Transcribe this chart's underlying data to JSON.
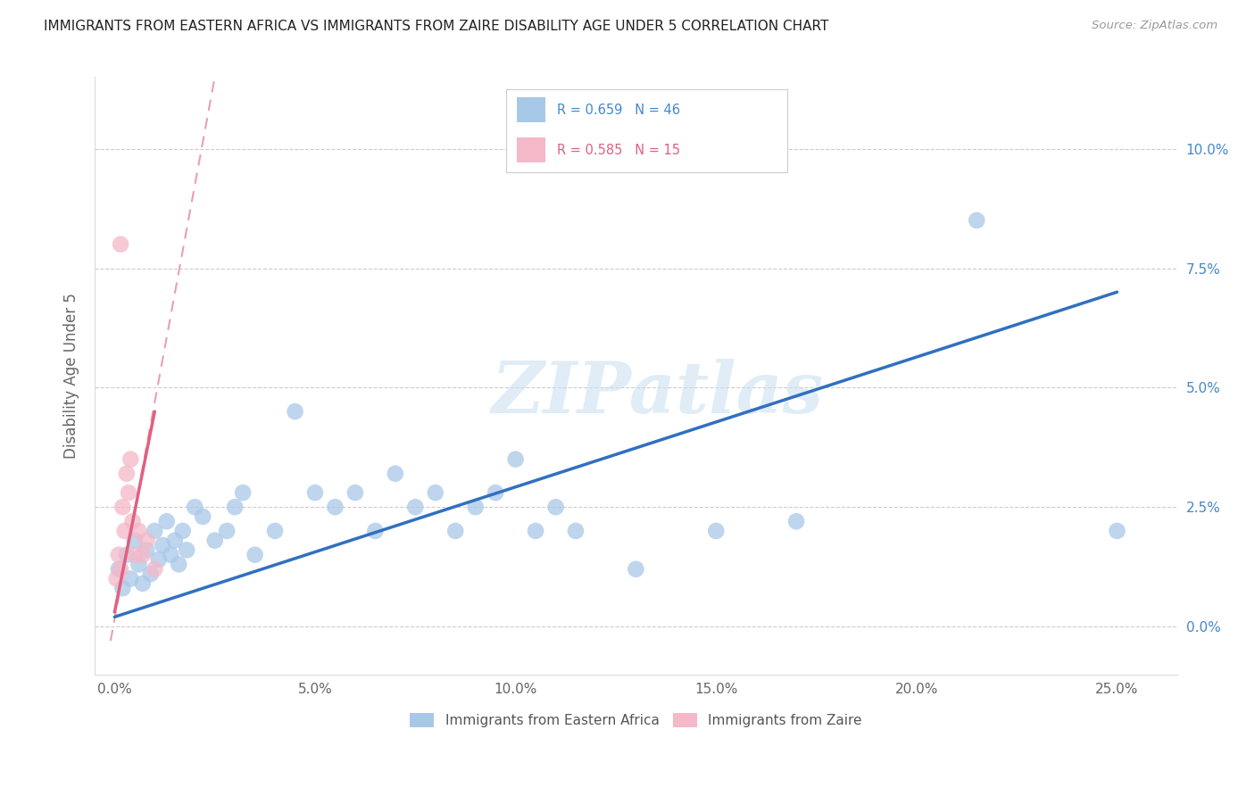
{
  "title": "IMMIGRANTS FROM EASTERN AFRICA VS IMMIGRANTS FROM ZAIRE DISABILITY AGE UNDER 5 CORRELATION CHART",
  "source": "Source: ZipAtlas.com",
  "xlabel_values": [
    0.0,
    5.0,
    10.0,
    15.0,
    20.0,
    25.0
  ],
  "ylabel_values": [
    0.0,
    2.5,
    5.0,
    7.5,
    10.0
  ],
  "ylabel_label": "Disability Age Under 5",
  "legend_label1": "Immigrants from Eastern Africa",
  "legend_label2": "Immigrants from Zaire",
  "R1": 0.659,
  "N1": 46,
  "R2": 0.585,
  "N2": 15,
  "blue_color": "#a8c8e8",
  "pink_color": "#f4b8c8",
  "blue_line_color": "#3070c0",
  "pink_line_color": "#e06080",
  "pink_dash_color": "#e8a0b0",
  "blue_scatter": [
    [
      0.1,
      1.2
    ],
    [
      0.2,
      0.8
    ],
    [
      0.3,
      1.5
    ],
    [
      0.4,
      1.0
    ],
    [
      0.5,
      1.8
    ],
    [
      0.6,
      1.3
    ],
    [
      0.7,
      0.9
    ],
    [
      0.8,
      1.6
    ],
    [
      0.9,
      1.1
    ],
    [
      1.0,
      2.0
    ],
    [
      1.1,
      1.4
    ],
    [
      1.2,
      1.7
    ],
    [
      1.3,
      2.2
    ],
    [
      1.4,
      1.5
    ],
    [
      1.5,
      1.8
    ],
    [
      1.6,
      1.3
    ],
    [
      1.7,
      2.0
    ],
    [
      1.8,
      1.6
    ],
    [
      2.0,
      2.5
    ],
    [
      2.2,
      2.3
    ],
    [
      2.5,
      1.8
    ],
    [
      2.8,
      2.0
    ],
    [
      3.0,
      2.5
    ],
    [
      3.2,
      2.8
    ],
    [
      3.5,
      1.5
    ],
    [
      4.0,
      2.0
    ],
    [
      4.5,
      4.5
    ],
    [
      5.0,
      2.8
    ],
    [
      5.5,
      2.5
    ],
    [
      6.0,
      2.8
    ],
    [
      6.5,
      2.0
    ],
    [
      7.0,
      3.2
    ],
    [
      7.5,
      2.5
    ],
    [
      8.0,
      2.8
    ],
    [
      8.5,
      2.0
    ],
    [
      9.0,
      2.5
    ],
    [
      9.5,
      2.8
    ],
    [
      10.0,
      3.5
    ],
    [
      10.5,
      2.0
    ],
    [
      11.0,
      2.5
    ],
    [
      11.5,
      2.0
    ],
    [
      13.0,
      1.2
    ],
    [
      15.0,
      2.0
    ],
    [
      17.0,
      2.2
    ],
    [
      21.5,
      8.5
    ],
    [
      25.0,
      2.0
    ]
  ],
  "pink_scatter": [
    [
      0.05,
      1.0
    ],
    [
      0.1,
      1.5
    ],
    [
      0.15,
      1.2
    ],
    [
      0.2,
      2.5
    ],
    [
      0.25,
      2.0
    ],
    [
      0.3,
      3.2
    ],
    [
      0.35,
      2.8
    ],
    [
      0.4,
      3.5
    ],
    [
      0.45,
      2.2
    ],
    [
      0.5,
      1.5
    ],
    [
      0.6,
      2.0
    ],
    [
      0.7,
      1.5
    ],
    [
      0.8,
      1.8
    ],
    [
      1.0,
      1.2
    ],
    [
      0.15,
      8.0
    ]
  ],
  "xlim": [
    -0.5,
    26.5
  ],
  "ylim": [
    -1.0,
    11.5
  ],
  "blue_line_x0": 0.0,
  "blue_line_y0": 0.2,
  "blue_line_x1": 25.0,
  "blue_line_y1": 7.0,
  "pink_line_solid_x0": 0.0,
  "pink_line_solid_y0": 0.3,
  "pink_line_solid_x1": 1.0,
  "pink_line_solid_y1": 4.5,
  "pink_line_dash_x0": -0.1,
  "pink_line_dash_y0": -0.3,
  "pink_line_dash_x1": 2.5,
  "pink_line_dash_y1": 11.5,
  "watermark_text": "ZIPatlas",
  "background_color": "#ffffff",
  "grid_color": "#cccccc"
}
